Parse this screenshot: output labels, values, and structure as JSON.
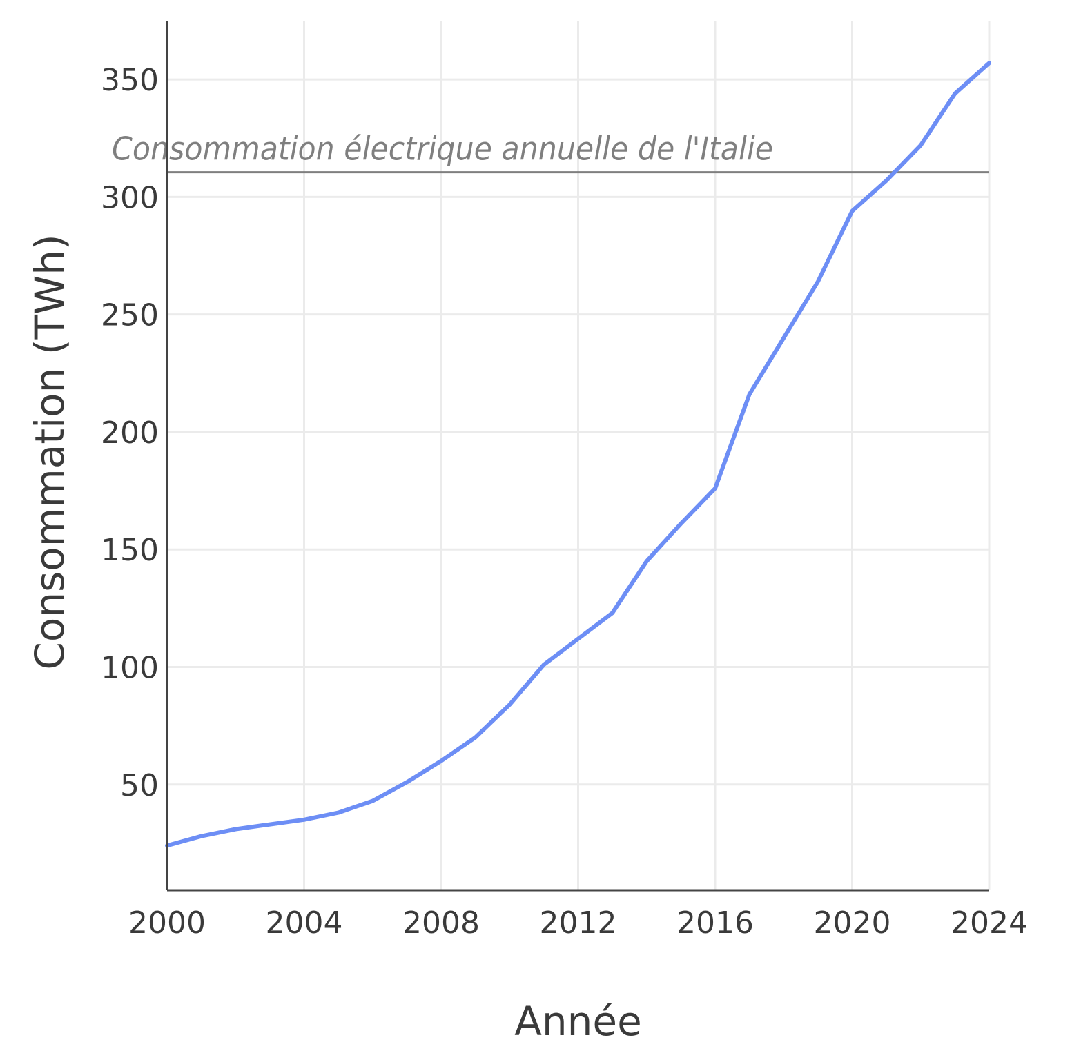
{
  "chart_data": {
    "type": "line",
    "xlabel": "Année",
    "ylabel": "Consommation (TWh)",
    "xlim": [
      2000,
      2024
    ],
    "ylim": [
      5,
      375
    ],
    "x_ticks": [
      2000,
      2004,
      2008,
      2012,
      2016,
      2020,
      2024
    ],
    "y_ticks": [
      50,
      100,
      150,
      200,
      250,
      300,
      350
    ],
    "grid": true,
    "series": [
      {
        "color": "#6d8ef5",
        "x": [
          2000,
          2001,
          2002,
          2003,
          2004,
          2005,
          2006,
          2007,
          2008,
          2009,
          2010,
          2011,
          2012,
          2013,
          2014,
          2015,
          2016,
          2017,
          2018,
          2019,
          2020,
          2021,
          2022,
          2023,
          2024
        ],
        "y": [
          24,
          28,
          31,
          33,
          35,
          38,
          43,
          51,
          60,
          70,
          84,
          101,
          112,
          123,
          145,
          161,
          176,
          216,
          240,
          264,
          294,
          307,
          322,
          344,
          357
        ]
      }
    ],
    "reference_line": {
      "y": 310.5,
      "label": "Consommation électrique annuelle de l'Italie",
      "color": "#7f7f7f"
    }
  }
}
